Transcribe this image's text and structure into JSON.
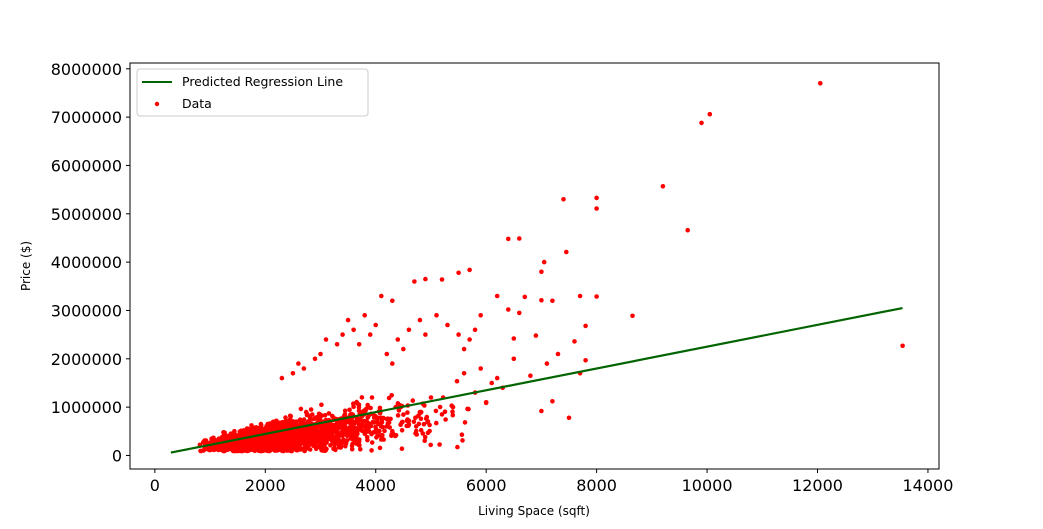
{
  "chart_data": {
    "type": "scatter",
    "xlabel": "Living Space (sqft)",
    "ylabel": "Price ($)",
    "xlim": [
      -450,
      14200
    ],
    "ylim": [
      -280000,
      8120000
    ],
    "xticks": [
      0,
      2000,
      4000,
      6000,
      8000,
      10000,
      12000,
      14000
    ],
    "xtick_labels": [
      "0",
      "2000",
      "4000",
      "6000",
      "8000",
      "10000",
      "12000",
      "14000"
    ],
    "yticks": [
      0,
      1000000,
      2000000,
      3000000,
      4000000,
      5000000,
      6000000,
      7000000,
      8000000
    ],
    "ytick_labels": [
      "0",
      "1000000",
      "2000000",
      "3000000",
      "4000000",
      "5000000",
      "6000000",
      "7000000",
      "8000000"
    ],
    "grid": false,
    "legend_position": "top-left",
    "legend": [
      "Predicted Regression Line",
      "Data"
    ],
    "series": [
      {
        "name": "Predicted Regression Line",
        "kind": "line",
        "color": "#006400",
        "x": [
          290,
          13540
        ],
        "y": [
          60000,
          3050000
        ]
      },
      {
        "name": "Data",
        "kind": "scatter",
        "color": "#ff0000",
        "points": [
          [
            12050,
            7700000
          ],
          [
            10050,
            7060000
          ],
          [
            9900,
            6880000
          ],
          [
            9200,
            5570000
          ],
          [
            9650,
            4660000
          ],
          [
            8000,
            5330000
          ],
          [
            8000,
            5110000
          ],
          [
            7400,
            5300000
          ],
          [
            13540,
            2270000
          ],
          [
            8650,
            2890000
          ],
          [
            7450,
            4210000
          ],
          [
            6600,
            4490000
          ],
          [
            6400,
            4480000
          ],
          [
            7050,
            4000000
          ],
          [
            7000,
            3800000
          ],
          [
            5700,
            3840000
          ],
          [
            5500,
            3780000
          ],
          [
            5200,
            3640000
          ],
          [
            4900,
            3650000
          ],
          [
            4700,
            3600000
          ],
          [
            4300,
            3200000
          ],
          [
            4100,
            3300000
          ],
          [
            6200,
            3300000
          ],
          [
            6700,
            3280000
          ],
          [
            7000,
            3210000
          ],
          [
            7200,
            3200000
          ],
          [
            7700,
            3300000
          ],
          [
            8000,
            3290000
          ],
          [
            6400,
            3020000
          ],
          [
            6600,
            2950000
          ],
          [
            7800,
            2680000
          ],
          [
            7600,
            2360000
          ],
          [
            6900,
            2480000
          ],
          [
            6500,
            2420000
          ],
          [
            7300,
            2100000
          ],
          [
            7100,
            1900000
          ],
          [
            7700,
            1700000
          ],
          [
            7800,
            1970000
          ],
          [
            7200,
            1120000
          ],
          [
            7000,
            920000
          ],
          [
            7500,
            780000
          ],
          [
            5900,
            2900000
          ],
          [
            5800,
            2600000
          ],
          [
            5700,
            2400000
          ],
          [
            5600,
            2200000
          ],
          [
            5500,
            2500000
          ],
          [
            5300,
            2700000
          ],
          [
            5100,
            2900000
          ],
          [
            4900,
            2500000
          ],
          [
            4800,
            2800000
          ],
          [
            4600,
            2600000
          ],
          [
            4500,
            2200000
          ],
          [
            4400,
            2400000
          ],
          [
            4300,
            1900000
          ],
          [
            4200,
            2100000
          ],
          [
            4000,
            2700000
          ],
          [
            3900,
            2500000
          ],
          [
            3800,
            2900000
          ],
          [
            3700,
            2300000
          ],
          [
            3600,
            2600000
          ],
          [
            3500,
            2800000
          ],
          [
            3400,
            2500000
          ],
          [
            3300,
            2300000
          ],
          [
            3100,
            2400000
          ],
          [
            3000,
            2100000
          ],
          [
            2900,
            2000000
          ],
          [
            2700,
            1800000
          ],
          [
            2600,
            1900000
          ],
          [
            2500,
            1700000
          ],
          [
            2300,
            1600000
          ],
          [
            6100,
            1500000
          ],
          [
            6300,
            1400000
          ],
          [
            6000,
            1100000
          ],
          [
            5800,
            1300000
          ],
          [
            5400,
            1000000
          ],
          [
            5200,
            850000
          ],
          [
            4800,
            900000
          ],
          [
            4600,
            720000
          ],
          [
            5000,
            1200000
          ],
          [
            5600,
            1700000
          ],
          [
            5900,
            1800000
          ],
          [
            6200,
            1600000
          ],
          [
            6500,
            2000000
          ],
          [
            6800,
            1650000
          ]
        ]
      }
    ]
  }
}
